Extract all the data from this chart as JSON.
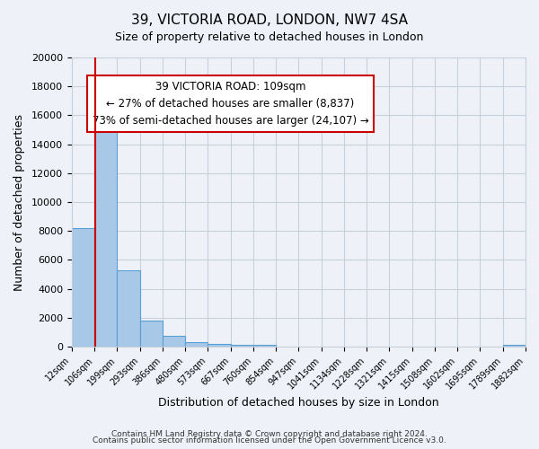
{
  "title": "39, VICTORIA ROAD, LONDON, NW7 4SA",
  "subtitle": "Size of property relative to detached houses in London",
  "xlabel": "Distribution of detached houses by size in London",
  "ylabel": "Number of detached properties",
  "bin_edges": [
    12,
    106,
    199,
    293,
    386,
    480,
    573,
    667,
    760,
    854,
    947,
    1041,
    1134,
    1228,
    1321,
    1415,
    1508,
    1602,
    1695,
    1789,
    1882
  ],
  "bin_counts": [
    8200,
    16600,
    5300,
    1800,
    750,
    300,
    200,
    150,
    100,
    0,
    0,
    0,
    0,
    0,
    0,
    0,
    0,
    0,
    0,
    150
  ],
  "property_size": 109,
  "bar_color": "#a8c8e8",
  "bar_edge_color": "#5a9fd4",
  "bar_fill_alpha": 0.5,
  "vline_color": "#cc0000",
  "bg_color": "#eef2f8",
  "grid_color": "#c8d0dc",
  "annotation_text": "39 VICTORIA ROAD: 109sqm\n← 27% of detached houses are smaller (8,837)\n73% of semi-detached houses are larger (24,107) →",
  "annotation_box_color": "#ffffff",
  "annotation_border_color": "#cc0000",
  "ylim": [
    0,
    20000
  ],
  "footer_line1": "Contains HM Land Registry data © Crown copyright and database right 2024.",
  "footer_line2": "Contains public sector information licensed under the Open Government Licence v3.0."
}
